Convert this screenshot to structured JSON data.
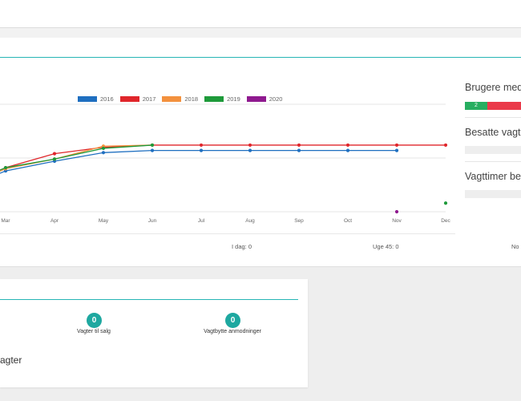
{
  "header": {},
  "chart_data": {
    "type": "line",
    "categories": [
      "Mar",
      "Apr",
      "May",
      "Jun",
      "Jul",
      "Aug",
      "Sep",
      "Oct",
      "Nov",
      "Dec"
    ],
    "series": [
      {
        "name": "2016",
        "color": "#1f6fc0",
        "values": [
          3.8,
          4.7,
          5.5,
          5.7,
          5.7,
          5.7,
          5.7,
          5.7,
          5.7,
          null
        ]
      },
      {
        "name": "2017",
        "color": "#e0262b",
        "values": [
          4.1,
          5.4,
          6.0,
          6.2,
          6.2,
          6.2,
          6.2,
          6.2,
          6.2,
          6.2
        ]
      },
      {
        "name": "2018",
        "color": "#f3913e",
        "values": [
          4.0,
          4.9,
          6.1,
          6.2,
          null,
          null,
          null,
          null,
          null,
          null
        ]
      },
      {
        "name": "2019",
        "color": "#1e9a3a",
        "values": [
          4.1,
          4.9,
          5.9,
          6.2,
          null,
          null,
          null,
          null,
          null,
          0.8
        ]
      },
      {
        "name": "2020",
        "color": "#8f1a8f",
        "values": [
          null,
          null,
          null,
          null,
          null,
          null,
          null,
          null,
          0.0,
          null
        ]
      }
    ],
    "ylim": [
      0,
      10
    ],
    "grid": true,
    "legend": "top"
  },
  "side": {
    "users_title": "Brugere med",
    "users_bar_value": "2",
    "users_bar_green": "#27ae60",
    "users_bar_red": "#ea3a4a",
    "occupied_title": "Besatte vagte",
    "hours_title": "Vagttimer bes"
  },
  "summary": {
    "today": "I dag: 0",
    "week": "Uge 45: 0",
    "month_partial": "No"
  },
  "bottom": {
    "shifts_for_sale_count": "0",
    "shifts_for_sale_label": "Vagter til salg",
    "swap_requests_count": "0",
    "swap_requests_label": "Vagtbytte anmodninger",
    "section_partial_title": "agter"
  },
  "colors": {
    "accent_teal": "#27b5b5",
    "badge_teal": "#1ea8a0"
  }
}
